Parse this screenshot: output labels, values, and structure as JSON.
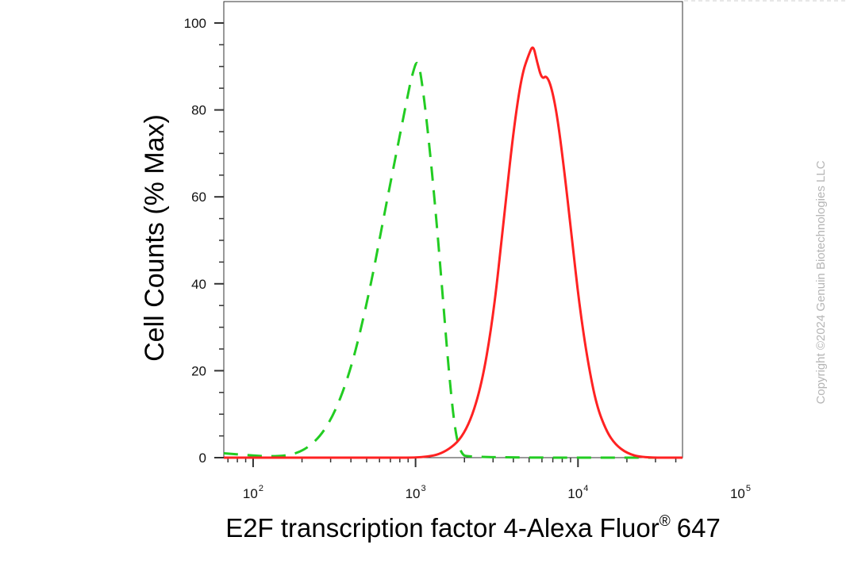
{
  "chart_data": {
    "type": "line",
    "xlabel": "E2F transcription factor 4-Alexa Fluor",
    "xlabel_sup": "®",
    "xlabel_suffix": "647",
    "ylabel": "Cell Counts (% Max)",
    "x_scale": "log",
    "xlim": [
      66,
      44000
    ],
    "ylim": [
      0,
      100
    ],
    "y_ticks": [
      0,
      20,
      40,
      60,
      80,
      100
    ],
    "x_ticks": [
      {
        "base": "10",
        "exp": "2",
        "value": 100
      },
      {
        "base": "10",
        "exp": "3",
        "value": 1000
      },
      {
        "base": "10",
        "exp": "4",
        "value": 10000
      },
      {
        "base": "10",
        "exp": "5",
        "value": 100000
      }
    ],
    "grid": false,
    "legend": "none",
    "series": [
      {
        "color": "#22cc22",
        "style": "dashed",
        "points": [
          [
            66,
            1
          ],
          [
            150,
            0
          ],
          [
            220,
            2
          ],
          [
            300,
            8
          ],
          [
            400,
            20
          ],
          [
            520,
            38
          ],
          [
            650,
            57
          ],
          [
            780,
            72
          ],
          [
            880,
            82
          ],
          [
            950,
            88
          ],
          [
            1030,
            92
          ],
          [
            1100,
            86
          ],
          [
            1200,
            74
          ],
          [
            1320,
            58
          ],
          [
            1450,
            40
          ],
          [
            1600,
            20
          ],
          [
            1750,
            6
          ],
          [
            1900,
            1
          ],
          [
            2100,
            0
          ],
          [
            44000,
            0
          ]
        ]
      },
      {
        "color": "#ff2222",
        "style": "solid",
        "points": [
          [
            66,
            0
          ],
          [
            700,
            0
          ],
          [
            1100,
            0
          ],
          [
            1500,
            1
          ],
          [
            2000,
            5
          ],
          [
            2500,
            15
          ],
          [
            3000,
            32
          ],
          [
            3500,
            55
          ],
          [
            4000,
            75
          ],
          [
            4500,
            88
          ],
          [
            5000,
            93
          ],
          [
            5300,
            95
          ],
          [
            5600,
            91
          ],
          [
            6000,
            87
          ],
          [
            6400,
            88
          ],
          [
            6900,
            85
          ],
          [
            7500,
            78
          ],
          [
            8300,
            65
          ],
          [
            9200,
            50
          ],
          [
            10200,
            35
          ],
          [
            11500,
            22
          ],
          [
            13000,
            12
          ],
          [
            15000,
            6
          ],
          [
            17000,
            3
          ],
          [
            20000,
            1
          ],
          [
            25000,
            0
          ],
          [
            44000,
            0
          ]
        ]
      }
    ]
  },
  "copyright": "Copyright ©2024 Genuin Biotechnologies LLC"
}
